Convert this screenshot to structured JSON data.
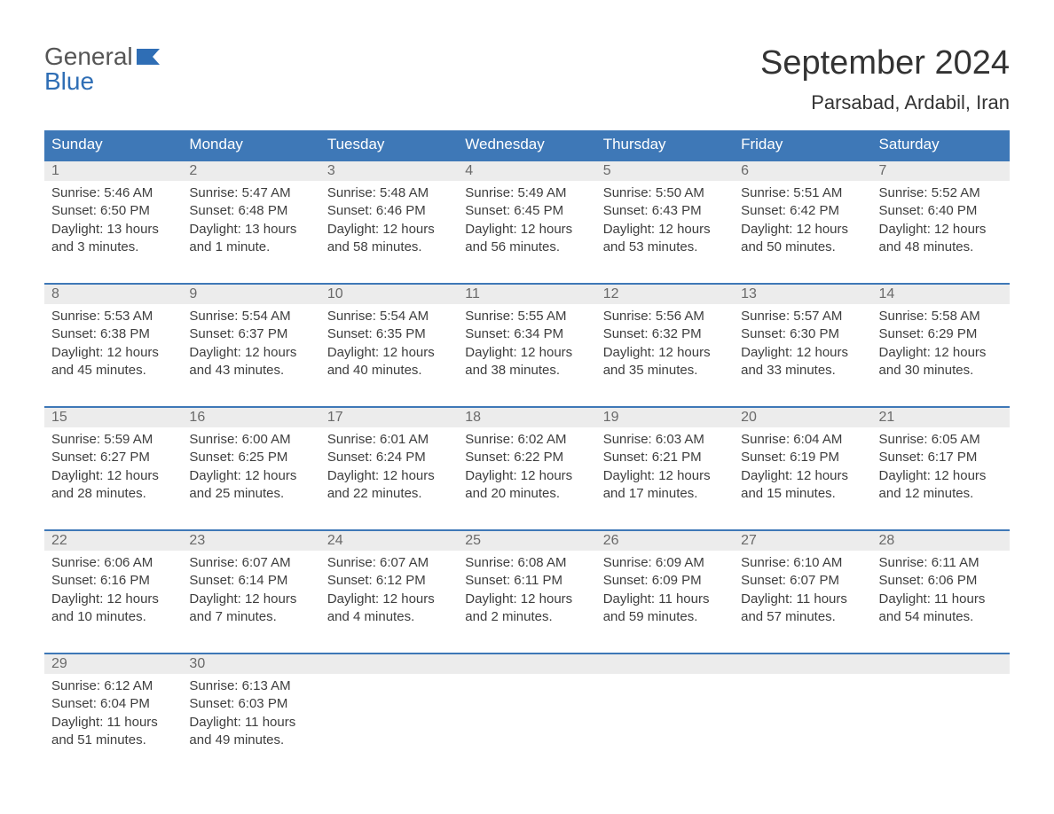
{
  "brand": {
    "line1": "General",
    "line2": "Blue",
    "accent_color": "#2f6eb5"
  },
  "title": "September 2024",
  "location": "Parsabad, Ardabil, Iran",
  "colors": {
    "header_bg": "#3e78b7",
    "header_text": "#ffffff",
    "daynum_bg": "#ececec",
    "daynum_text": "#6a6a6a",
    "body_text": "#3e3e3e",
    "border": "#3e78b7",
    "page_bg": "#ffffff"
  },
  "fonts": {
    "title_pt": 38,
    "location_pt": 22,
    "weekday_pt": 17,
    "daynum_pt": 16,
    "body_pt": 15
  },
  "weekdays": [
    "Sunday",
    "Monday",
    "Tuesday",
    "Wednesday",
    "Thursday",
    "Friday",
    "Saturday"
  ],
  "weeks": [
    [
      {
        "day": "1",
        "sunrise": "Sunrise: 5:46 AM",
        "sunset": "Sunset: 6:50 PM",
        "d1": "Daylight: 13 hours",
        "d2": "and 3 minutes."
      },
      {
        "day": "2",
        "sunrise": "Sunrise: 5:47 AM",
        "sunset": "Sunset: 6:48 PM",
        "d1": "Daylight: 13 hours",
        "d2": "and 1 minute."
      },
      {
        "day": "3",
        "sunrise": "Sunrise: 5:48 AM",
        "sunset": "Sunset: 6:46 PM",
        "d1": "Daylight: 12 hours",
        "d2": "and 58 minutes."
      },
      {
        "day": "4",
        "sunrise": "Sunrise: 5:49 AM",
        "sunset": "Sunset: 6:45 PM",
        "d1": "Daylight: 12 hours",
        "d2": "and 56 minutes."
      },
      {
        "day": "5",
        "sunrise": "Sunrise: 5:50 AM",
        "sunset": "Sunset: 6:43 PM",
        "d1": "Daylight: 12 hours",
        "d2": "and 53 minutes."
      },
      {
        "day": "6",
        "sunrise": "Sunrise: 5:51 AM",
        "sunset": "Sunset: 6:42 PM",
        "d1": "Daylight: 12 hours",
        "d2": "and 50 minutes."
      },
      {
        "day": "7",
        "sunrise": "Sunrise: 5:52 AM",
        "sunset": "Sunset: 6:40 PM",
        "d1": "Daylight: 12 hours",
        "d2": "and 48 minutes."
      }
    ],
    [
      {
        "day": "8",
        "sunrise": "Sunrise: 5:53 AM",
        "sunset": "Sunset: 6:38 PM",
        "d1": "Daylight: 12 hours",
        "d2": "and 45 minutes."
      },
      {
        "day": "9",
        "sunrise": "Sunrise: 5:54 AM",
        "sunset": "Sunset: 6:37 PM",
        "d1": "Daylight: 12 hours",
        "d2": "and 43 minutes."
      },
      {
        "day": "10",
        "sunrise": "Sunrise: 5:54 AM",
        "sunset": "Sunset: 6:35 PM",
        "d1": "Daylight: 12 hours",
        "d2": "and 40 minutes."
      },
      {
        "day": "11",
        "sunrise": "Sunrise: 5:55 AM",
        "sunset": "Sunset: 6:34 PM",
        "d1": "Daylight: 12 hours",
        "d2": "and 38 minutes."
      },
      {
        "day": "12",
        "sunrise": "Sunrise: 5:56 AM",
        "sunset": "Sunset: 6:32 PM",
        "d1": "Daylight: 12 hours",
        "d2": "and 35 minutes."
      },
      {
        "day": "13",
        "sunrise": "Sunrise: 5:57 AM",
        "sunset": "Sunset: 6:30 PM",
        "d1": "Daylight: 12 hours",
        "d2": "and 33 minutes."
      },
      {
        "day": "14",
        "sunrise": "Sunrise: 5:58 AM",
        "sunset": "Sunset: 6:29 PM",
        "d1": "Daylight: 12 hours",
        "d2": "and 30 minutes."
      }
    ],
    [
      {
        "day": "15",
        "sunrise": "Sunrise: 5:59 AM",
        "sunset": "Sunset: 6:27 PM",
        "d1": "Daylight: 12 hours",
        "d2": "and 28 minutes."
      },
      {
        "day": "16",
        "sunrise": "Sunrise: 6:00 AM",
        "sunset": "Sunset: 6:25 PM",
        "d1": "Daylight: 12 hours",
        "d2": "and 25 minutes."
      },
      {
        "day": "17",
        "sunrise": "Sunrise: 6:01 AM",
        "sunset": "Sunset: 6:24 PM",
        "d1": "Daylight: 12 hours",
        "d2": "and 22 minutes."
      },
      {
        "day": "18",
        "sunrise": "Sunrise: 6:02 AM",
        "sunset": "Sunset: 6:22 PM",
        "d1": "Daylight: 12 hours",
        "d2": "and 20 minutes."
      },
      {
        "day": "19",
        "sunrise": "Sunrise: 6:03 AM",
        "sunset": "Sunset: 6:21 PM",
        "d1": "Daylight: 12 hours",
        "d2": "and 17 minutes."
      },
      {
        "day": "20",
        "sunrise": "Sunrise: 6:04 AM",
        "sunset": "Sunset: 6:19 PM",
        "d1": "Daylight: 12 hours",
        "d2": "and 15 minutes."
      },
      {
        "day": "21",
        "sunrise": "Sunrise: 6:05 AM",
        "sunset": "Sunset: 6:17 PM",
        "d1": "Daylight: 12 hours",
        "d2": "and 12 minutes."
      }
    ],
    [
      {
        "day": "22",
        "sunrise": "Sunrise: 6:06 AM",
        "sunset": "Sunset: 6:16 PM",
        "d1": "Daylight: 12 hours",
        "d2": "and 10 minutes."
      },
      {
        "day": "23",
        "sunrise": "Sunrise: 6:07 AM",
        "sunset": "Sunset: 6:14 PM",
        "d1": "Daylight: 12 hours",
        "d2": "and 7 minutes."
      },
      {
        "day": "24",
        "sunrise": "Sunrise: 6:07 AM",
        "sunset": "Sunset: 6:12 PM",
        "d1": "Daylight: 12 hours",
        "d2": "and 4 minutes."
      },
      {
        "day": "25",
        "sunrise": "Sunrise: 6:08 AM",
        "sunset": "Sunset: 6:11 PM",
        "d1": "Daylight: 12 hours",
        "d2": "and 2 minutes."
      },
      {
        "day": "26",
        "sunrise": "Sunrise: 6:09 AM",
        "sunset": "Sunset: 6:09 PM",
        "d1": "Daylight: 11 hours",
        "d2": "and 59 minutes."
      },
      {
        "day": "27",
        "sunrise": "Sunrise: 6:10 AM",
        "sunset": "Sunset: 6:07 PM",
        "d1": "Daylight: 11 hours",
        "d2": "and 57 minutes."
      },
      {
        "day": "28",
        "sunrise": "Sunrise: 6:11 AM",
        "sunset": "Sunset: 6:06 PM",
        "d1": "Daylight: 11 hours",
        "d2": "and 54 minutes."
      }
    ],
    [
      {
        "day": "29",
        "sunrise": "Sunrise: 6:12 AM",
        "sunset": "Sunset: 6:04 PM",
        "d1": "Daylight: 11 hours",
        "d2": "and 51 minutes."
      },
      {
        "day": "30",
        "sunrise": "Sunrise: 6:13 AM",
        "sunset": "Sunset: 6:03 PM",
        "d1": "Daylight: 11 hours",
        "d2": "and 49 minutes."
      },
      {
        "day": "",
        "sunrise": "",
        "sunset": "",
        "d1": "",
        "d2": ""
      },
      {
        "day": "",
        "sunrise": "",
        "sunset": "",
        "d1": "",
        "d2": ""
      },
      {
        "day": "",
        "sunrise": "",
        "sunset": "",
        "d1": "",
        "d2": ""
      },
      {
        "day": "",
        "sunrise": "",
        "sunset": "",
        "d1": "",
        "d2": ""
      },
      {
        "day": "",
        "sunrise": "",
        "sunset": "",
        "d1": "",
        "d2": ""
      }
    ]
  ]
}
